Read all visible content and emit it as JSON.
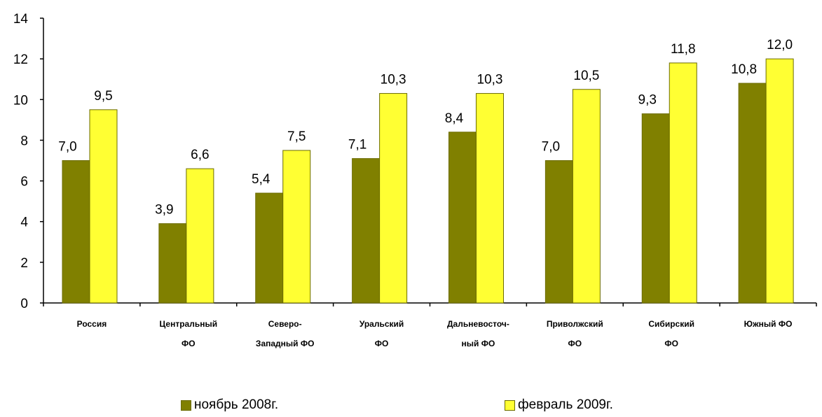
{
  "chart_data": {
    "type": "bar",
    "title": "",
    "xlabel": "",
    "ylabel": "",
    "ylim": [
      0,
      14
    ],
    "yticks": [
      "0",
      "2",
      "4",
      "6",
      "8",
      "10",
      "12",
      "14"
    ],
    "grid": false,
    "legend_position": "bottom",
    "categories": [
      [
        "Россия"
      ],
      [
        "Центральный",
        "ФО"
      ],
      [
        "Северо-",
        "Западный ФО"
      ],
      [
        "Уральский",
        "ФО"
      ],
      [
        "Дальневосточ-",
        "ный ФО"
      ],
      [
        "Приволжский",
        "ФО"
      ],
      [
        "Сибирский",
        "ФО"
      ],
      [
        "Южный ФО"
      ]
    ],
    "series": [
      {
        "name": "ноябрь 2008г.",
        "color": "#808000",
        "values": [
          7.0,
          3.9,
          5.4,
          7.1,
          8.4,
          7.0,
          9.3,
          10.8
        ],
        "labels": [
          "7,0",
          "3,9",
          "5,4",
          "7,1",
          "8,4",
          "7,0",
          "9,3",
          "10,8"
        ]
      },
      {
        "name": "февраль 2009г.",
        "color": "#ffff33",
        "values": [
          9.5,
          6.6,
          7.5,
          10.3,
          10.3,
          10.5,
          11.8,
          12.0
        ],
        "labels": [
          "9,5",
          "6,6",
          "7,5",
          "10,3",
          "10,3",
          "10,5",
          "11,8",
          "12,0"
        ]
      }
    ]
  }
}
